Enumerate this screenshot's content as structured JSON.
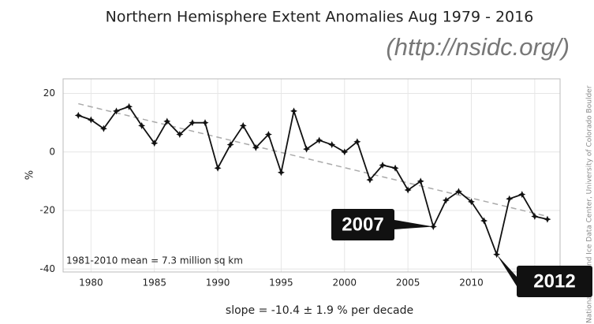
{
  "chart_data": {
    "type": "line",
    "title": "Northern Hemisphere Extent Anomalies Aug 1979 - 2016",
    "subtitle": "(http://nsidc.org/)",
    "y_label": "%",
    "mean_note": "1981-2010 mean = 7.3 million sq km",
    "slope_note": "slope = -10.4 ± 1.9 % per decade",
    "credit": "National Snow and Ice Data Center, University of Colorado Boulder",
    "x": [
      1979,
      1980,
      1981,
      1982,
      1983,
      1984,
      1985,
      1986,
      1987,
      1988,
      1989,
      1990,
      1991,
      1992,
      1993,
      1994,
      1995,
      1996,
      1997,
      1998,
      1999,
      2000,
      2001,
      2002,
      2003,
      2004,
      2005,
      2006,
      2007,
      2008,
      2009,
      2010,
      2011,
      2012,
      2013,
      2014,
      2015,
      2016
    ],
    "series": [
      {
        "color": "#111111",
        "values": [
          12.5,
          11,
          8,
          14,
          15.5,
          9,
          3,
          10.5,
          6,
          10,
          10,
          -5.5,
          2.5,
          9,
          1.5,
          6,
          -7,
          14,
          1,
          4,
          2.5,
          0,
          3.5,
          -9.5,
          -4.5,
          -5.5,
          -13,
          -10,
          -25.5,
          -16.5,
          -13.5,
          -17,
          -23.5,
          -35,
          -16,
          -14.5,
          -22,
          -23
        ]
      }
    ],
    "trend": {
      "color": "#aaaaaa",
      "x": [
        1979,
        2016
      ],
      "values": [
        16.5,
        -22
      ]
    },
    "annotations": [
      {
        "text": "2007"
      },
      {
        "text": "2012"
      }
    ],
    "xlim": [
      1977.8,
      2017
    ],
    "ylim": [
      -41,
      25
    ],
    "xticks": [
      1980,
      1985,
      1990,
      1995,
      2000,
      2005,
      2010,
      2015
    ],
    "yticks": [
      -40,
      -20,
      0,
      20
    ],
    "grid": true
  }
}
